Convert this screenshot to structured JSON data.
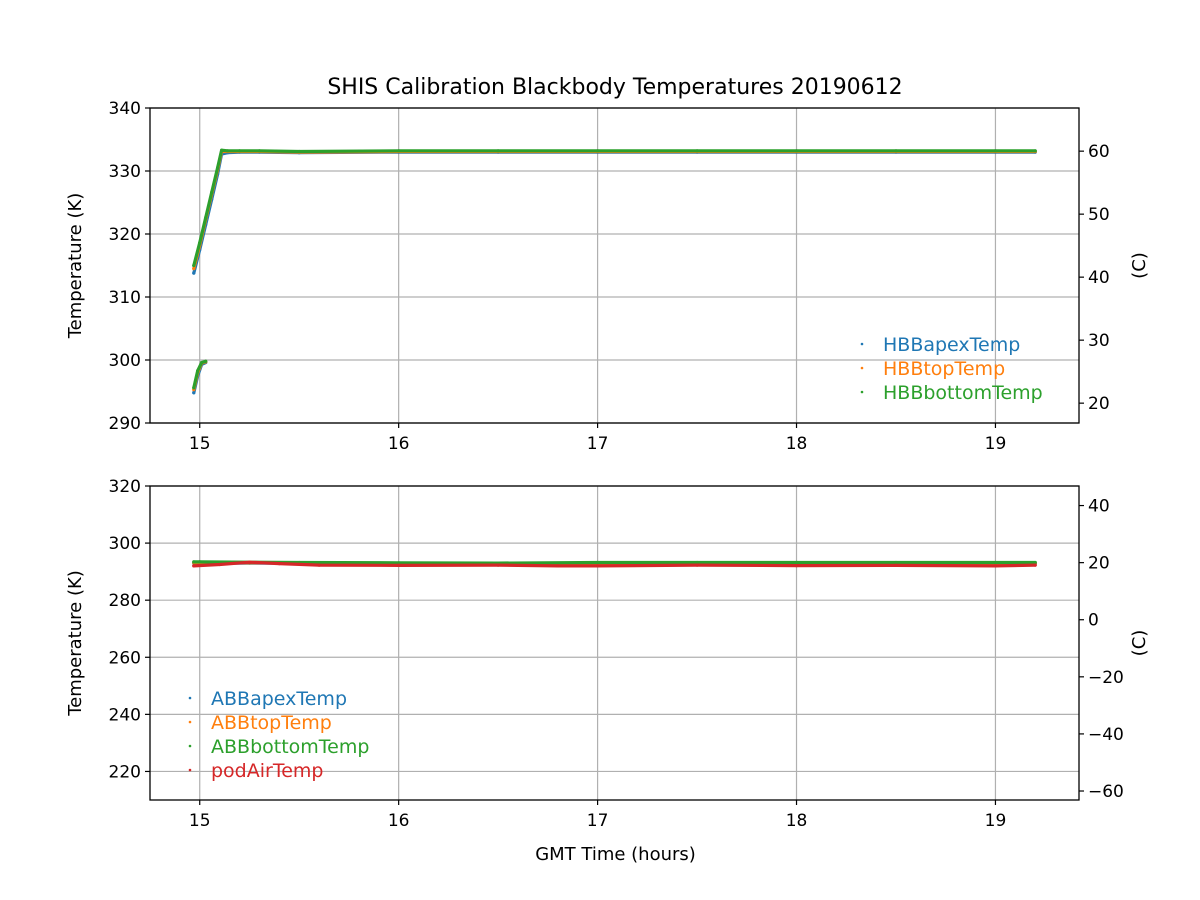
{
  "figure": {
    "title": "SHIS Calibration Blackbody Temperatures 20190612"
  },
  "colors": {
    "blue": "#1f77b4",
    "orange": "#ff7f0e",
    "green": "#2ca02c",
    "red": "#d62728",
    "grid": "#b0b0b0"
  },
  "chart_data": [
    {
      "type": "scatter",
      "id": "top",
      "title": "SHIS Calibration Blackbody Temperatures 20190612",
      "xlabel": "",
      "ylabel": "Temperature (K)",
      "y2label": "(C)",
      "xlim": [
        14.75,
        19.42
      ],
      "ylim": [
        290,
        340
      ],
      "y2lim": [
        16.85,
        66.85
      ],
      "xticks": [
        15,
        16,
        17,
        18,
        19
      ],
      "yticks": [
        290,
        300,
        310,
        320,
        330,
        340
      ],
      "y2ticks": [
        20,
        30,
        40,
        50,
        60
      ],
      "grid": true,
      "legend": "lower-right",
      "series": [
        {
          "name": "HBBapexTemp",
          "color": "#1f77b4",
          "x": [
            14.97,
            14.99,
            15.01,
            15.03,
            14.97,
            15.0,
            15.03,
            15.06,
            15.09,
            15.11,
            15.14,
            15.2,
            15.3,
            15.5,
            16.0,
            16.5,
            17.0,
            17.5,
            18.0,
            18.5,
            19.0,
            19.2
          ],
          "y": [
            294.8,
            297.5,
            299.3,
            299.6,
            313.8,
            317.5,
            321.5,
            325.5,
            329.5,
            332.7,
            332.9,
            333.0,
            333.0,
            332.9,
            333.0,
            333.0,
            333.0,
            333.0,
            333.0,
            333.0,
            333.0,
            333.0
          ]
        },
        {
          "name": "HBBtopTemp",
          "color": "#ff7f0e",
          "x": [
            14.97,
            14.99,
            15.01,
            15.03,
            14.97,
            15.0,
            15.03,
            15.06,
            15.09,
            15.11,
            15.14,
            15.2,
            15.3,
            15.5,
            16.0,
            16.5,
            17.0,
            17.5,
            18.0,
            18.5,
            19.0,
            19.2
          ],
          "y": [
            295.3,
            298.0,
            299.5,
            299.7,
            314.5,
            318.2,
            322.3,
            326.3,
            330.2,
            333.1,
            333.1,
            333.1,
            333.1,
            333.0,
            333.1,
            333.1,
            333.1,
            333.1,
            333.1,
            333.1,
            333.1,
            333.1
          ]
        },
        {
          "name": "HBBbottomTemp",
          "color": "#2ca02c",
          "x": [
            14.97,
            14.99,
            15.01,
            15.03,
            14.97,
            15.0,
            15.03,
            15.06,
            15.09,
            15.11,
            15.14,
            15.2,
            15.3,
            15.5,
            16.0,
            16.5,
            17.0,
            17.5,
            18.0,
            18.5,
            19.0,
            19.2
          ],
          "y": [
            295.6,
            298.3,
            299.6,
            299.8,
            315.0,
            318.6,
            322.6,
            326.6,
            330.5,
            333.3,
            333.2,
            333.2,
            333.2,
            333.1,
            333.2,
            333.2,
            333.2,
            333.2,
            333.2,
            333.2,
            333.2,
            333.2
          ]
        }
      ]
    },
    {
      "type": "scatter",
      "id": "bottom",
      "title": "",
      "xlabel": "GMT Time (hours)",
      "ylabel": "Temperature (K)",
      "y2label": "(C)",
      "xlim": [
        14.75,
        19.42
      ],
      "ylim": [
        210,
        320
      ],
      "y2lim": [
        -63.15,
        46.85
      ],
      "xticks": [
        15,
        16,
        17,
        18,
        19
      ],
      "yticks": [
        220,
        240,
        260,
        280,
        300,
        320
      ],
      "y2ticks": [
        -60,
        -40,
        -20,
        0,
        20,
        40
      ],
      "grid": true,
      "legend": "lower-left",
      "series": [
        {
          "name": "ABBapexTemp",
          "color": "#1f77b4",
          "x": [
            14.97,
            15.0,
            15.25,
            15.5,
            16.0,
            16.5,
            17.0,
            17.5,
            18.0,
            18.5,
            19.0,
            19.2
          ],
          "y": [
            293.0,
            293.0,
            293.0,
            293.0,
            292.8,
            292.8,
            292.9,
            292.9,
            292.9,
            292.9,
            292.9,
            292.9
          ]
        },
        {
          "name": "ABBtopTemp",
          "color": "#ff7f0e",
          "x": [
            14.97,
            15.0,
            15.25,
            15.5,
            16.0,
            16.5,
            17.0,
            17.5,
            18.0,
            18.5,
            19.0,
            19.2
          ],
          "y": [
            293.1,
            293.1,
            293.1,
            293.1,
            292.9,
            292.9,
            293.0,
            293.0,
            293.0,
            293.0,
            293.0,
            293.0
          ]
        },
        {
          "name": "ABBbottomTemp",
          "color": "#2ca02c",
          "x": [
            14.97,
            15.0,
            15.25,
            15.5,
            16.0,
            16.5,
            17.0,
            17.5,
            18.0,
            18.5,
            19.0,
            19.2
          ],
          "y": [
            293.4,
            293.4,
            293.3,
            293.2,
            293.1,
            293.0,
            293.2,
            293.2,
            293.2,
            293.2,
            293.2,
            293.2
          ]
        },
        {
          "name": "podAirTemp",
          "color": "#d62728",
          "x": [
            14.97,
            15.1,
            15.25,
            15.4,
            15.6,
            16.0,
            16.5,
            16.8,
            17.0,
            17.5,
            18.0,
            18.5,
            19.0,
            19.2
          ],
          "y": [
            292.0,
            292.5,
            293.3,
            292.8,
            292.3,
            292.2,
            292.3,
            292.0,
            292.0,
            292.3,
            292.1,
            292.2,
            292.0,
            292.3
          ]
        }
      ]
    }
  ]
}
